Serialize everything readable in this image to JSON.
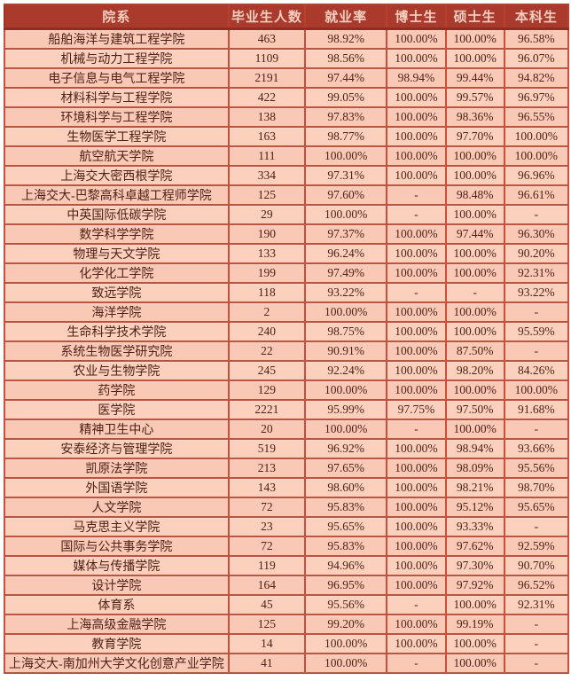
{
  "colors": {
    "header_bg": "#a93a2c",
    "header_text": "#f6cfc0",
    "cell_bg": "#f9c9b5",
    "border": "#c7503a",
    "text": "#4f2117"
  },
  "chart_data": {
    "type": "table",
    "columns": [
      "院系",
      "毕业生人数",
      "就业率",
      "博士生",
      "硕士生",
      "本科生"
    ],
    "rows": [
      [
        "船舶海洋与建筑工程学院",
        "463",
        "98.92%",
        "100.00%",
        "100.00%",
        "96.58%"
      ],
      [
        "机械与动力工程学院",
        "1109",
        "98.56%",
        "100.00%",
        "100.00%",
        "96.07%"
      ],
      [
        "电子信息与电气工程学院",
        "2191",
        "97.44%",
        "98.94%",
        "99.44%",
        "94.82%"
      ],
      [
        "材料科学与工程学院",
        "422",
        "99.05%",
        "100.00%",
        "99.57%",
        "96.97%"
      ],
      [
        "环境科学与工程学院",
        "138",
        "97.83%",
        "100.00%",
        "98.36%",
        "96.55%"
      ],
      [
        "生物医学工程学院",
        "163",
        "98.77%",
        "100.00%",
        "97.70%",
        "100.00%"
      ],
      [
        "航空航天学院",
        "111",
        "100.00%",
        "100.00%",
        "100.00%",
        "100.00%"
      ],
      [
        "上海交大密西根学院",
        "334",
        "97.31%",
        "100.00%",
        "100.00%",
        "96.96%"
      ],
      [
        "上海交大-巴黎高科卓越工程师学院",
        "125",
        "97.60%",
        "-",
        "98.48%",
        "96.61%"
      ],
      [
        "中英国际低碳学院",
        "29",
        "100.00%",
        "-",
        "100.00%",
        "-"
      ],
      [
        "数学科学学院",
        "190",
        "97.37%",
        "100.00%",
        "97.44%",
        "96.30%"
      ],
      [
        "物理与天文学院",
        "133",
        "96.24%",
        "100.00%",
        "100.00%",
        "90.20%"
      ],
      [
        "化学化工学院",
        "199",
        "97.49%",
        "100.00%",
        "100.00%",
        "92.31%"
      ],
      [
        "致远学院",
        "118",
        "93.22%",
        "-",
        "-",
        "93.22%"
      ],
      [
        "海洋学院",
        "2",
        "100.00%",
        "100.00%",
        "100.00%",
        "-"
      ],
      [
        "生命科学技术学院",
        "240",
        "98.75%",
        "100.00%",
        "100.00%",
        "95.59%"
      ],
      [
        "系统生物医学研究院",
        "22",
        "90.91%",
        "100.00%",
        "87.50%",
        "-"
      ],
      [
        "农业与生物学院",
        "245",
        "92.24%",
        "100.00%",
        "98.20%",
        "84.26%"
      ],
      [
        "药学院",
        "129",
        "100.00%",
        "100.00%",
        "100.00%",
        "100.00%"
      ],
      [
        "医学院",
        "2221",
        "95.99%",
        "97.75%",
        "97.50%",
        "91.68%"
      ],
      [
        "精神卫生中心",
        "20",
        "100.00%",
        "-",
        "100.00%",
        "-"
      ],
      [
        "安泰经济与管理学院",
        "519",
        "96.92%",
        "100.00%",
        "98.94%",
        "93.66%"
      ],
      [
        "凯原法学院",
        "213",
        "97.65%",
        "100.00%",
        "98.09%",
        "95.56%"
      ],
      [
        "外国语学院",
        "143",
        "98.60%",
        "100.00%",
        "98.21%",
        "98.70%"
      ],
      [
        "人文学院",
        "72",
        "95.83%",
        "100.00%",
        "95.12%",
        "95.65%"
      ],
      [
        "马克思主义学院",
        "23",
        "95.65%",
        "100.00%",
        "93.33%",
        "-"
      ],
      [
        "国际与公共事务学院",
        "72",
        "95.83%",
        "100.00%",
        "97.62%",
        "92.59%"
      ],
      [
        "媒体与传播学院",
        "119",
        "94.96%",
        "100.00%",
        "97.30%",
        "90.70%"
      ],
      [
        "设计学院",
        "164",
        "96.95%",
        "100.00%",
        "97.92%",
        "96.52%"
      ],
      [
        "体育系",
        "45",
        "95.56%",
        "-",
        "100.00%",
        "92.31%"
      ],
      [
        "上海高级金融学院",
        "125",
        "99.20%",
        "100.00%",
        "99.19%",
        "-"
      ],
      [
        "教育学院",
        "14",
        "100.00%",
        "100.00%",
        "100.00%",
        "-"
      ],
      [
        "上海交大-南加州大学文化创意产业学院",
        "41",
        "100.00%",
        "-",
        "100.00%",
        "-"
      ]
    ]
  }
}
